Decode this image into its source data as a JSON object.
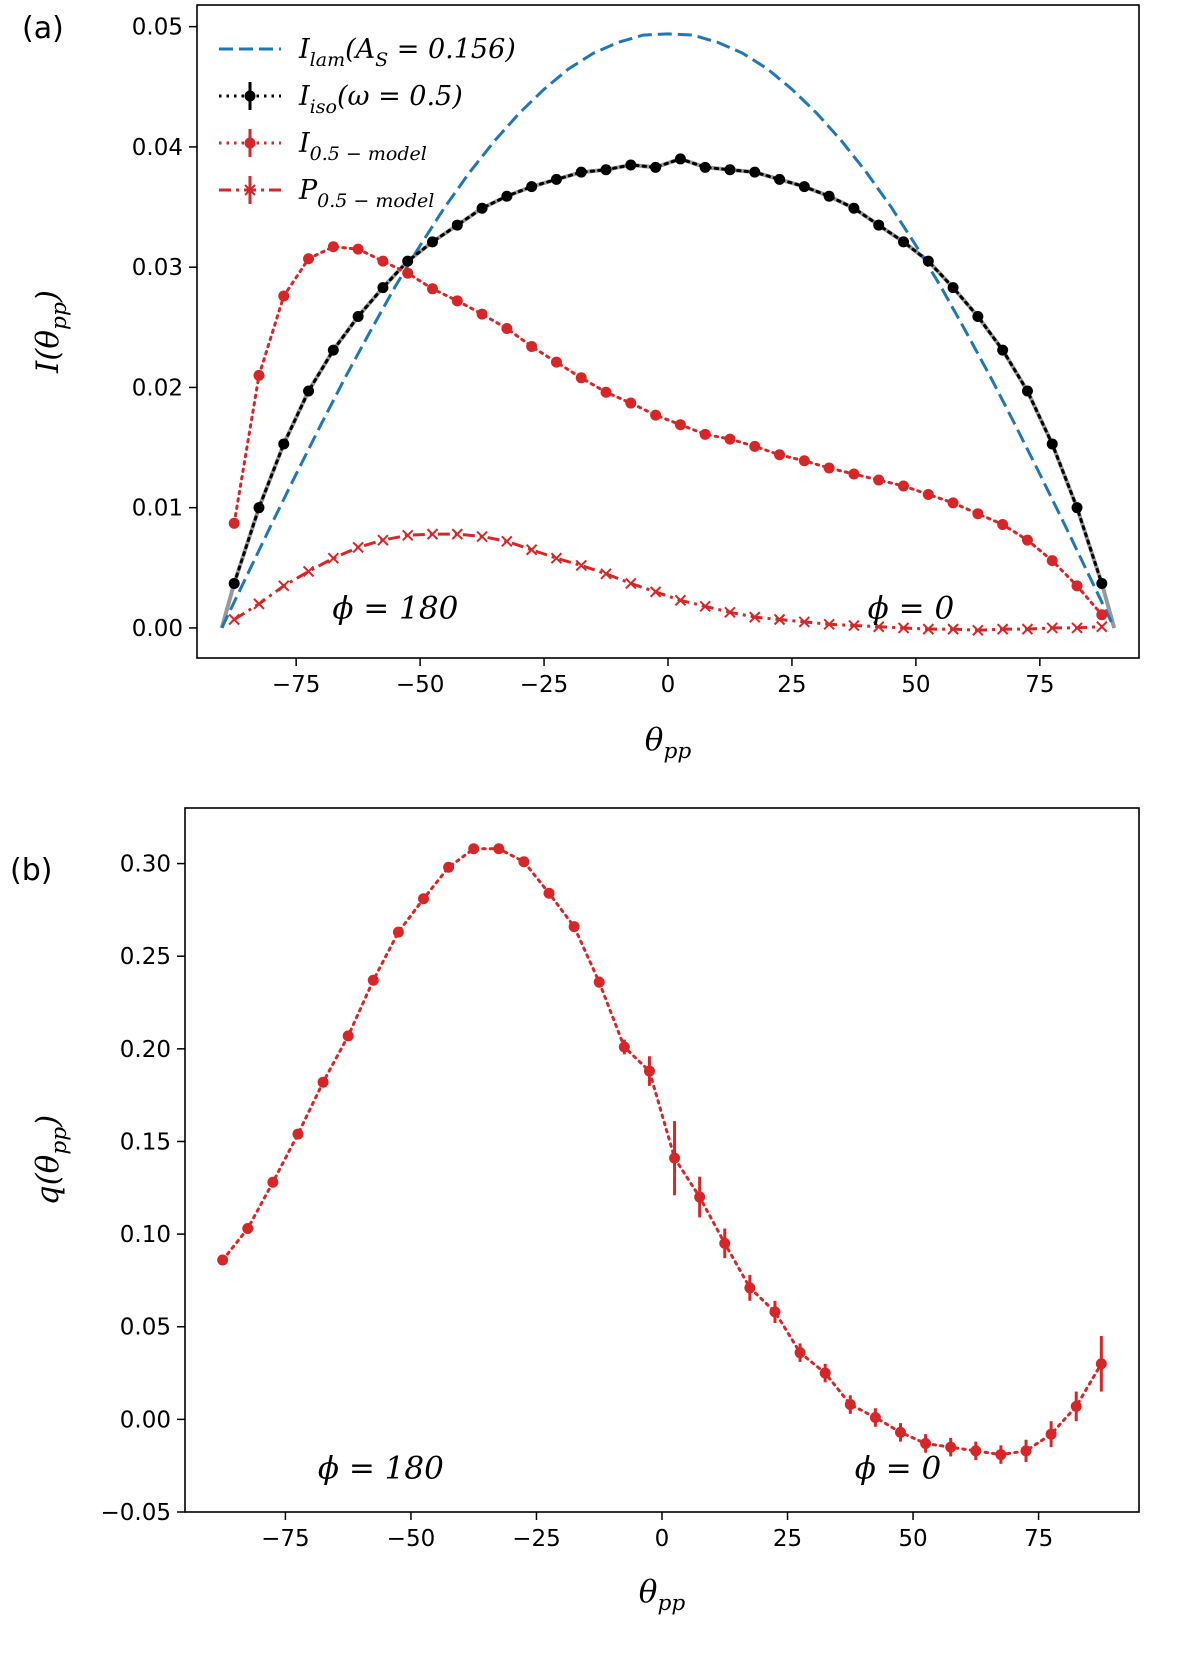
{
  "chart_data": [
    {
      "id": "a",
      "type": "line",
      "panel_label": "(a)",
      "xlabel": "θpp",
      "ylabel": "I(θpp)",
      "xlim": [
        -95,
        95
      ],
      "ylim": [
        -0.0025,
        0.0518
      ],
      "xticks": [
        -75,
        -50,
        -25,
        0,
        25,
        50,
        75
      ],
      "xtick_labels": [
        "−75",
        "−50",
        "−25",
        "0",
        "25",
        "50",
        "75"
      ],
      "yticks": [
        0.0,
        0.01,
        0.02,
        0.03,
        0.04,
        0.05
      ],
      "ytick_labels": [
        "0.00",
        "0.01",
        "0.02",
        "0.03",
        "0.04",
        "0.05"
      ],
      "annotations": [
        {
          "text": "ϕ = 180",
          "x": -55,
          "y": 0.0008
        },
        {
          "text": "ϕ = 0",
          "x": 49,
          "y": 0.0008
        }
      ],
      "legend": {
        "placement": "top-left"
      },
      "series": [
        {
          "name": "I_lam(A_S = 0.156)",
          "label_main": "I",
          "label_sub": "lam",
          "label_rest": "(A",
          "label_sub2": "S",
          "label_rest2": " = 0.156)",
          "color": "#1f77b4",
          "style": "dashed",
          "marker": "none",
          "x": [
            -90,
            -85,
            -80,
            -75,
            -70,
            -65,
            -60,
            -55,
            -50,
            -45,
            -40,
            -35,
            -30,
            -25,
            -20,
            -15,
            -10,
            -5,
            0,
            5,
            10,
            15,
            20,
            25,
            30,
            35,
            40,
            45,
            50,
            55,
            60,
            65,
            70,
            75,
            80,
            85,
            90
          ],
          "y": [
            0.0,
            0.0043,
            0.0086,
            0.0128,
            0.0169,
            0.0209,
            0.0247,
            0.0284,
            0.0318,
            0.035,
            0.0379,
            0.0405,
            0.0428,
            0.0448,
            0.0465,
            0.0478,
            0.0487,
            0.0493,
            0.0494,
            0.0493,
            0.0487,
            0.0478,
            0.0465,
            0.0448,
            0.0428,
            0.0405,
            0.0379,
            0.035,
            0.0318,
            0.0284,
            0.0247,
            0.0209,
            0.0169,
            0.0128,
            0.0086,
            0.0043,
            0.0
          ]
        },
        {
          "name": "I_iso(ω = 0.5)",
          "label_main": "I",
          "label_sub": "iso",
          "label_rest": "(ω = 0.5)",
          "label_sub2": "",
          "label_rest2": "",
          "color": "#000000",
          "style": "dotted",
          "marker": "circle",
          "fit_color": "#999999",
          "x": [
            -87.5,
            -82.5,
            -77.5,
            -72.5,
            -67.5,
            -62.5,
            -57.5,
            -52.5,
            -47.5,
            -42.5,
            -37.5,
            -32.5,
            -27.5,
            -22.5,
            -17.5,
            -12.5,
            -7.5,
            -2.5,
            2.5,
            7.5,
            12.5,
            17.5,
            22.5,
            27.5,
            32.5,
            37.5,
            42.5,
            47.5,
            52.5,
            57.5,
            62.5,
            67.5,
            72.5,
            77.5,
            82.5,
            87.5
          ],
          "y": [
            0.0037,
            0.01,
            0.0153,
            0.0197,
            0.0231,
            0.0259,
            0.0283,
            0.0305,
            0.0321,
            0.0335,
            0.0349,
            0.0359,
            0.0367,
            0.0373,
            0.0379,
            0.0381,
            0.0385,
            0.0383,
            0.039,
            0.0383,
            0.0381,
            0.0379,
            0.0373,
            0.0367,
            0.0359,
            0.0349,
            0.0335,
            0.0321,
            0.0305,
            0.0283,
            0.0259,
            0.0231,
            0.0197,
            0.0153,
            0.01,
            0.0037
          ]
        },
        {
          "name": "I_0.5-model",
          "label_main": "I",
          "label_sub": "0.5 − model",
          "label_rest": "",
          "label_sub2": "",
          "label_rest2": "",
          "color": "#d62728",
          "style": "dotted",
          "marker": "circle",
          "x": [
            -87.5,
            -82.5,
            -77.5,
            -72.5,
            -67.5,
            -62.5,
            -57.5,
            -52.5,
            -47.5,
            -42.5,
            -37.5,
            -32.5,
            -27.5,
            -22.5,
            -17.5,
            -12.5,
            -7.5,
            -2.5,
            2.5,
            7.5,
            12.5,
            17.5,
            22.5,
            27.5,
            32.5,
            37.5,
            42.5,
            47.5,
            52.5,
            57.5,
            62.5,
            67.5,
            72.5,
            77.5,
            82.5,
            87.5
          ],
          "y": [
            0.0087,
            0.021,
            0.0276,
            0.0307,
            0.0317,
            0.0315,
            0.0305,
            0.0295,
            0.0282,
            0.0272,
            0.0261,
            0.0249,
            0.0234,
            0.0221,
            0.0208,
            0.0196,
            0.0187,
            0.0177,
            0.0169,
            0.0161,
            0.0157,
            0.0151,
            0.0144,
            0.0139,
            0.0133,
            0.0128,
            0.0123,
            0.0118,
            0.0111,
            0.0104,
            0.0095,
            0.0086,
            0.0073,
            0.0056,
            0.0035,
            0.0011
          ]
        },
        {
          "name": "P_0.5-model",
          "label_main": "P",
          "label_sub": "0.5 − model",
          "label_rest": "",
          "label_sub2": "",
          "label_rest2": "",
          "color": "#d62728",
          "style": "dashdot",
          "marker": "x",
          "x": [
            -87.5,
            -82.5,
            -77.5,
            -72.5,
            -67.5,
            -62.5,
            -57.5,
            -52.5,
            -47.5,
            -42.5,
            -37.5,
            -32.5,
            -27.5,
            -22.5,
            -17.5,
            -12.5,
            -7.5,
            -2.5,
            2.5,
            7.5,
            12.5,
            17.5,
            22.5,
            27.5,
            32.5,
            37.5,
            42.5,
            47.5,
            52.5,
            57.5,
            62.5,
            67.5,
            72.5,
            77.5,
            82.5,
            87.5
          ],
          "y": [
            0.0007,
            0.002,
            0.0035,
            0.0047,
            0.0058,
            0.0067,
            0.0073,
            0.0077,
            0.0078,
            0.0078,
            0.0076,
            0.0072,
            0.0065,
            0.0058,
            0.0052,
            0.0045,
            0.0037,
            0.003,
            0.0023,
            0.0018,
            0.0013,
            0.0009,
            0.0007,
            0.0005,
            0.0003,
            0.0002,
            0.0001,
            0.0,
            -0.0001,
            -0.0001,
            -0.0002,
            -0.0001,
            -0.0001,
            0.0,
            0.0,
            0.0001
          ]
        }
      ]
    },
    {
      "id": "b",
      "type": "line",
      "panel_label": "(b)",
      "xlabel": "θpp",
      "ylabel": "q(θpp)",
      "xlim": [
        -95,
        95
      ],
      "ylim": [
        -0.05,
        0.33
      ],
      "xticks": [
        -75,
        -50,
        -25,
        0,
        25,
        50,
        75
      ],
      "xtick_labels": [
        "−75",
        "−50",
        "−25",
        "0",
        "25",
        "50",
        "75"
      ],
      "yticks": [
        -0.05,
        0.0,
        0.05,
        0.1,
        0.15,
        0.2,
        0.25,
        0.3
      ],
      "ytick_labels": [
        "−0.05",
        "0.00",
        "0.05",
        "0.10",
        "0.15",
        "0.20",
        "0.25",
        "0.30"
      ],
      "annotations": [
        {
          "text": "ϕ = 180",
          "x": -56,
          "y": -0.032
        },
        {
          "text": "ϕ = 0",
          "x": 47,
          "y": -0.032
        }
      ],
      "series": [
        {
          "name": "q",
          "color": "#d62728",
          "style": "dotted",
          "marker": "circle",
          "x": [
            -87.5,
            -82.5,
            -77.5,
            -72.5,
            -67.5,
            -62.5,
            -57.5,
            -52.5,
            -47.5,
            -42.5,
            -37.5,
            -32.5,
            -27.5,
            -22.5,
            -17.5,
            -12.5,
            -7.5,
            -2.5,
            2.5,
            7.5,
            12.5,
            17.5,
            22.5,
            27.5,
            32.5,
            37.5,
            42.5,
            47.5,
            52.5,
            57.5,
            62.5,
            67.5,
            72.5,
            77.5,
            82.5,
            87.5
          ],
          "y": [
            0.086,
            0.103,
            0.128,
            0.154,
            0.182,
            0.207,
            0.237,
            0.263,
            0.281,
            0.298,
            0.308,
            0.308,
            0.301,
            0.284,
            0.266,
            0.236,
            0.201,
            0.188,
            0.141,
            0.12,
            0.095,
            0.071,
            0.058,
            0.036,
            0.025,
            0.008,
            0.001,
            -0.007,
            -0.013,
            -0.015,
            -0.017,
            -0.019,
            -0.017,
            -0.008,
            0.007,
            0.03
          ],
          "err": [
            0.001,
            0.001,
            0.001,
            0.001,
            0.001,
            0.001,
            0.001,
            0.001,
            0.001,
            0.001,
            0.001,
            0.001,
            0.001,
            0.002,
            0.002,
            0.003,
            0.004,
            0.008,
            0.02,
            0.011,
            0.008,
            0.007,
            0.006,
            0.005,
            0.005,
            0.005,
            0.005,
            0.005,
            0.005,
            0.005,
            0.005,
            0.005,
            0.006,
            0.007,
            0.008,
            0.015
          ]
        }
      ]
    }
  ]
}
